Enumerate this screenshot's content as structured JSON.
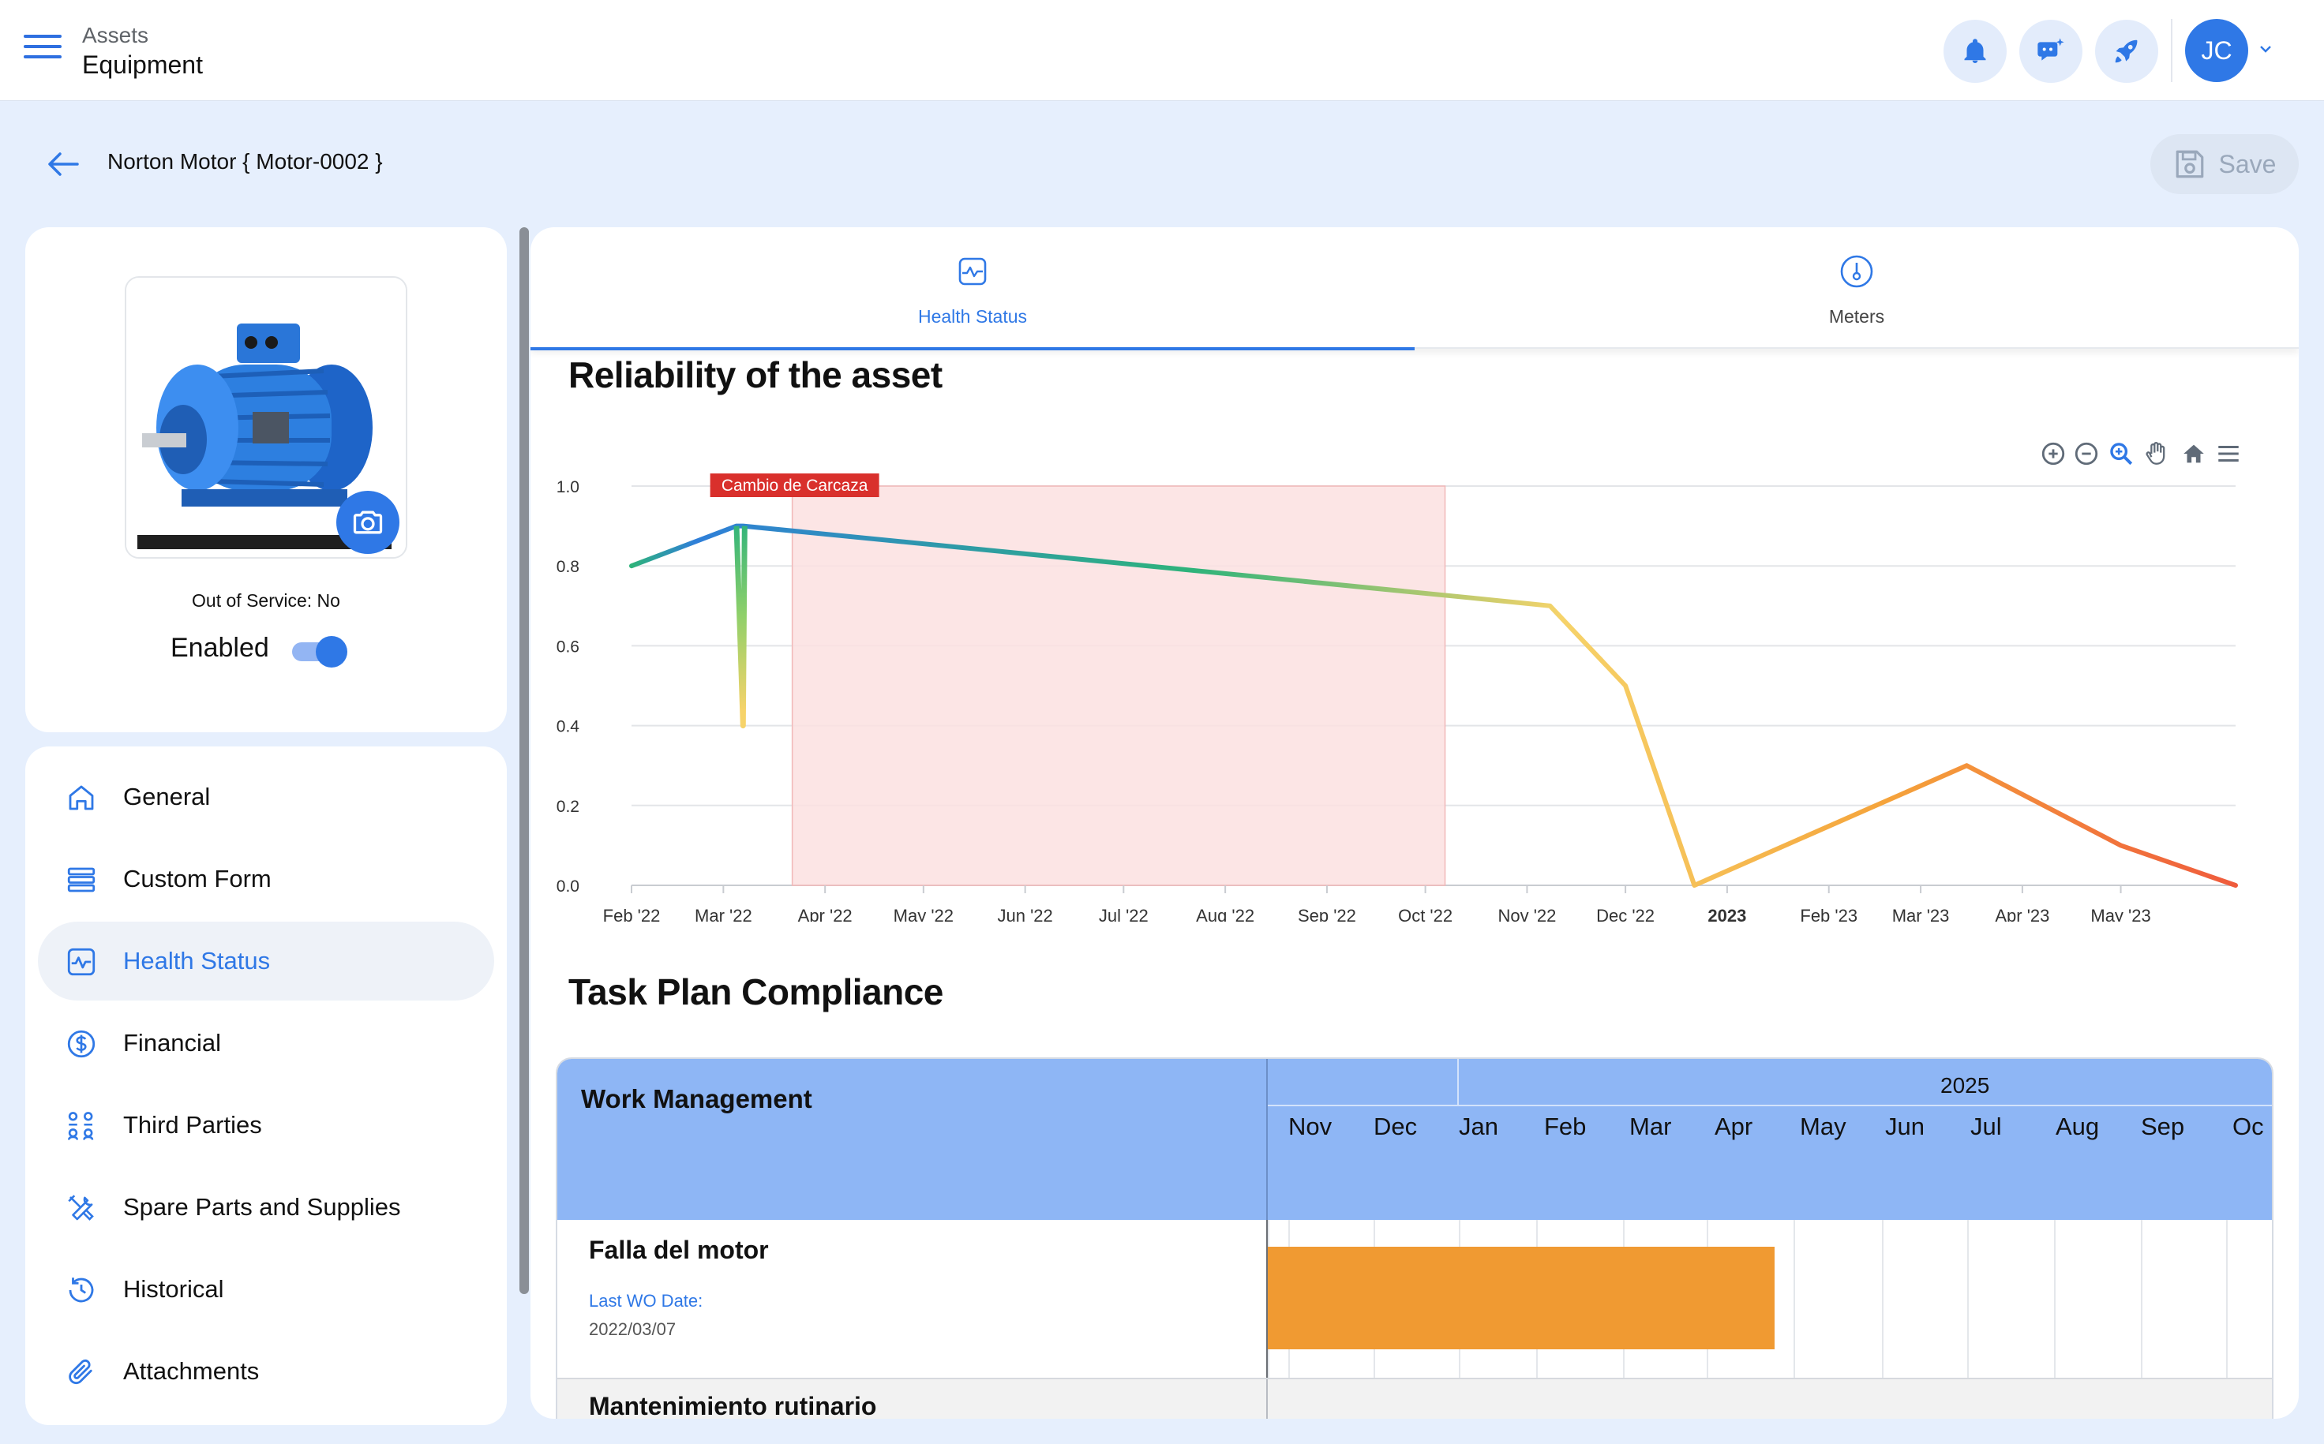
{
  "header": {
    "section": "Assets",
    "page": "Equipment",
    "avatar_initials": "JC",
    "icons": [
      "bell-icon",
      "chat-sparkle-icon",
      "rocket-icon"
    ]
  },
  "subheader": {
    "title": "Norton Motor { Motor-0002 }",
    "save_label": "Save"
  },
  "asset": {
    "out_of_service": "Out of Service: No",
    "enabled_label": "Enabled",
    "enabled": true
  },
  "nav": {
    "items": [
      {
        "label": "General",
        "icon": "home-icon"
      },
      {
        "label": "Custom Form",
        "icon": "form-icon"
      },
      {
        "label": "Health Status",
        "icon": "pulse-icon",
        "active": true
      },
      {
        "label": "Financial",
        "icon": "dollar-icon"
      },
      {
        "label": "Third Parties",
        "icon": "people-icon"
      },
      {
        "label": "Spare Parts and Supplies",
        "icon": "tools-icon"
      },
      {
        "label": "Historical",
        "icon": "history-icon"
      },
      {
        "label": "Attachments",
        "icon": "paperclip-icon"
      }
    ]
  },
  "tabs": [
    {
      "label": "Health Status",
      "icon": "pulse-icon",
      "active": true
    },
    {
      "label": "Meters",
      "icon": "gauge-icon"
    }
  ],
  "reliability": {
    "title": "Reliability of the asset"
  },
  "chart_data": {
    "type": "line",
    "title": "Reliability of the asset",
    "xlabel": "",
    "ylabel": "",
    "ylim": [
      0,
      1
    ],
    "ytick_labels": [
      "0.0",
      "0.2",
      "0.4",
      "0.6",
      "0.8",
      "1.0"
    ],
    "xtick_labels": [
      "Feb '22",
      "Mar '22",
      "Apr '22",
      "May '22",
      "Jun '22",
      "Jul '22",
      "Aug '22",
      "Sep '22",
      "Oct '22",
      "Nov '22",
      "Dec '22",
      "2023",
      "Feb '23",
      "Mar '23",
      "Apr '23",
      "May '23"
    ],
    "points": [
      {
        "x": "2022-02-01",
        "y": 0.8
      },
      {
        "x": "2022-03-05",
        "y": 0.9
      },
      {
        "x": "2022-03-07",
        "y": 0.4
      },
      {
        "x": "2022-03-07",
        "y": 0.9
      },
      {
        "x": "2022-10-15",
        "y": 0.72
      },
      {
        "x": "2022-11-08",
        "y": 0.7
      },
      {
        "x": "2022-12-01",
        "y": 0.5
      },
      {
        "x": "2022-12-22",
        "y": 0.0
      },
      {
        "x": "2023-03-15",
        "y": 0.3
      },
      {
        "x": "2023-05-01",
        "y": 0.1
      },
      {
        "x": "2023-06-05",
        "y": 0.0
      }
    ],
    "annotation": {
      "label": "Cambio de Carcaza",
      "x_start": "2022-03-22",
      "x_end": "2022-10-07",
      "color": "#d9302c",
      "fill": "#fbe0e0"
    },
    "grid": true,
    "legend": "none",
    "line_colors": [
      "#2f7fd9",
      "#2eb37a",
      "#f6d36a",
      "#f5a43b",
      "#ef5b3c"
    ]
  },
  "compliance": {
    "title": "Task Plan Compliance",
    "header_label": "Work Management",
    "year": "2025",
    "months": [
      "Nov",
      "Dec",
      "Jan",
      "Feb",
      "Mar",
      "Apr",
      "May",
      "Jun",
      "Jul",
      "Aug",
      "Sep",
      "Oc"
    ],
    "tasks": [
      {
        "name": "Falla del motor",
        "wo_label": "Last WO Date:",
        "wo_date": "2022/03/07"
      },
      {
        "name": "Mantenimiento rutinario"
      }
    ],
    "bar_color": "#f09a32"
  }
}
